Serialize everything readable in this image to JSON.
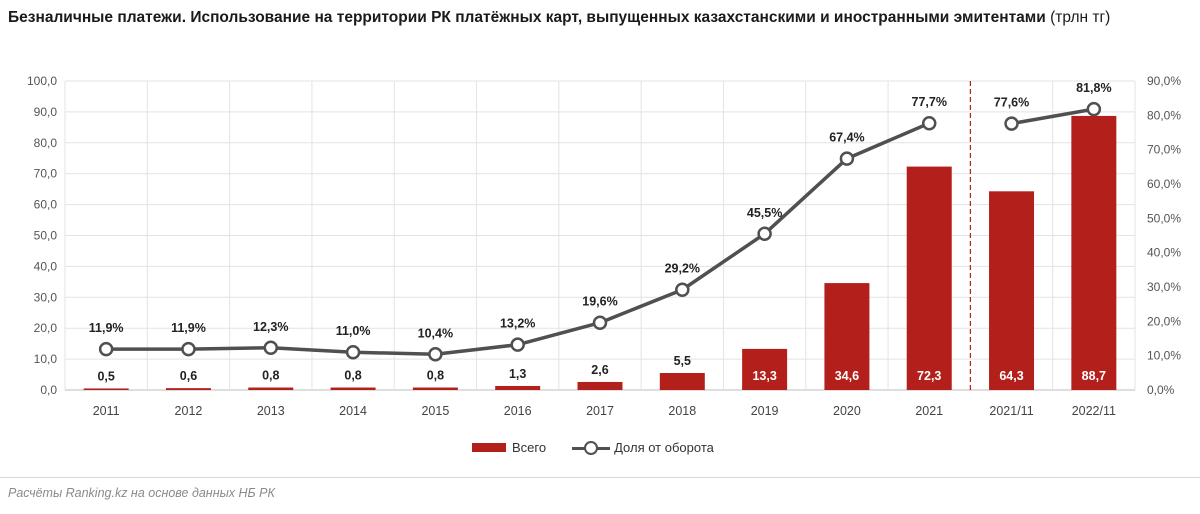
{
  "title": {
    "bold": "Безналичные платежи. Использование на территории РК платёжных карт, выпущенных казахстанскими и иностранными эмитентами",
    "unit": " (трлн тг)"
  },
  "source": "Расчёты Ranking.kz на основе данных НБ РК",
  "colors": {
    "bar": "#b3201c",
    "line": "#505050",
    "grid": "#e3e3e3",
    "divider": "#b3201c"
  },
  "chart_data": {
    "type": "bar",
    "categories": [
      "2011",
      "2012",
      "2013",
      "2014",
      "2015",
      "2016",
      "2017",
      "2018",
      "2019",
      "2020",
      "2021",
      "2021/11",
      "2022/11"
    ],
    "series": [
      {
        "name": "Всего",
        "type": "bar",
        "axis": "left",
        "values": [
          0.5,
          0.6,
          0.8,
          0.8,
          0.8,
          1.3,
          2.6,
          5.5,
          13.3,
          34.6,
          72.3,
          64.3,
          88.7
        ],
        "labels": [
          "0,5",
          "0,6",
          "0,8",
          "0,8",
          "0,8",
          "1,3",
          "2,6",
          "5,5",
          "13,3",
          "34,6",
          "72,3",
          "64,3",
          "88,7"
        ]
      },
      {
        "name": "Доля от оборота",
        "type": "line",
        "axis": "right",
        "values": [
          11.9,
          11.9,
          12.3,
          11.0,
          10.4,
          13.2,
          19.6,
          29.2,
          45.5,
          67.4,
          77.7,
          77.6,
          81.8
        ],
        "labels": [
          "11,9%",
          "11,9%",
          "12,3%",
          "11,0%",
          "10,4%",
          "13,2%",
          "19,6%",
          "29,2%",
          "45,5%",
          "67,4%",
          "77,7%",
          "77,6%",
          "81,8%"
        ]
      }
    ],
    "line_segments": [
      [
        0,
        10
      ],
      [
        11,
        12
      ]
    ],
    "y_left": {
      "ylim": [
        0,
        100
      ],
      "ticks": [
        "0,0",
        "10,0",
        "20,0",
        "30,0",
        "40,0",
        "50,0",
        "60,0",
        "70,0",
        "80,0",
        "90,0",
        "100,0"
      ]
    },
    "y_right": {
      "ylim": [
        0,
        90
      ],
      "ticks": [
        "0,0%",
        "10,0%",
        "20,0%",
        "30,0%",
        "40,0%",
        "50,0%",
        "60,0%",
        "70,0%",
        "80,0%",
        "90,0%"
      ]
    },
    "grid": true,
    "legend_position": "bottom"
  }
}
